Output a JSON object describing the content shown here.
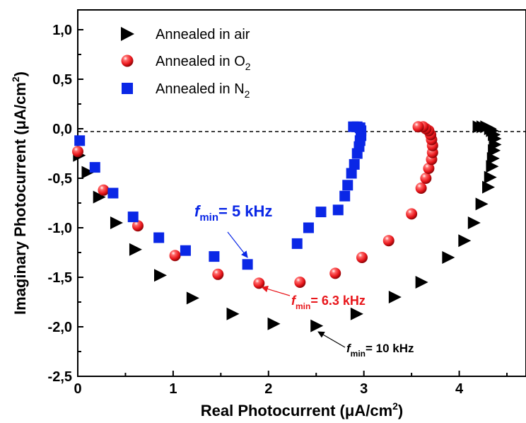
{
  "chart_data": {
    "type": "scatter",
    "xlabel": "Real Photocurrent (μA/cm",
    "xlabel_sup": "2",
    "xlabel_end": ")",
    "ylabel": "Imaginary Photocurrent (μA/cm",
    "ylabel_sup": "2",
    "ylabel_end": ")",
    "xlim": [
      0,
      4.7
    ],
    "ylim": [
      -2.5,
      1.2
    ],
    "xticks": [
      0,
      1,
      2,
      3,
      4
    ],
    "xtick_labels": [
      "0",
      "1",
      "2",
      "3",
      "4"
    ],
    "yticks": [
      1.0,
      0.5,
      0.0,
      -0.5,
      -1.0,
      -1.5,
      -2.0,
      -2.5
    ],
    "ytick_labels": [
      "1,0",
      "0,5",
      "0,0",
      "-0,5",
      "-1,0",
      "-1,5",
      "-2,0",
      "-2,5"
    ],
    "reference_line": {
      "y": 0,
      "style": "dashed"
    },
    "grid": false,
    "legend_position": "top-left",
    "series": [
      {
        "name_main": "Annealed in air",
        "name_sub": "",
        "marker": "triangle-right",
        "color": "#000000",
        "points": [
          [
            0.01,
            -0.27
          ],
          [
            0.1,
            -0.44
          ],
          [
            0.22,
            -0.69
          ],
          [
            0.4,
            -0.95
          ],
          [
            0.6,
            -1.22
          ],
          [
            0.86,
            -1.48
          ],
          [
            1.2,
            -1.71
          ],
          [
            1.62,
            -1.87
          ],
          [
            2.05,
            -1.97
          ],
          [
            2.5,
            -1.99
          ],
          [
            2.92,
            -1.87
          ],
          [
            3.32,
            -1.7
          ],
          [
            3.6,
            -1.55
          ],
          [
            3.88,
            -1.3
          ],
          [
            4.05,
            -1.13
          ],
          [
            4.15,
            -0.95
          ],
          [
            4.23,
            -0.76
          ],
          [
            4.3,
            -0.59
          ],
          [
            4.32,
            -0.49
          ],
          [
            4.34,
            -0.38
          ],
          [
            4.35,
            -0.3
          ],
          [
            4.36,
            -0.22
          ],
          [
            4.37,
            -0.16
          ],
          [
            4.37,
            -0.1
          ],
          [
            4.36,
            -0.06
          ],
          [
            4.34,
            -0.02
          ],
          [
            4.32,
            0.0
          ],
          [
            4.28,
            0.02
          ],
          [
            4.24,
            0.02
          ],
          [
            4.2,
            0.02
          ]
        ]
      },
      {
        "name_main": "Annealed in O",
        "name_sub": "2",
        "marker": "sphere",
        "color": "#e8161b",
        "points": [
          [
            0.0,
            -0.23
          ],
          [
            0.27,
            -0.62
          ],
          [
            0.63,
            -0.98
          ],
          [
            1.02,
            -1.28
          ],
          [
            1.47,
            -1.47
          ],
          [
            1.9,
            -1.56
          ],
          [
            2.33,
            -1.55
          ],
          [
            2.7,
            -1.46
          ],
          [
            2.98,
            -1.3
          ],
          [
            3.26,
            -1.13
          ],
          [
            3.5,
            -0.86
          ],
          [
            3.6,
            -0.6
          ],
          [
            3.65,
            -0.5
          ],
          [
            3.68,
            -0.4
          ],
          [
            3.71,
            -0.31
          ],
          [
            3.72,
            -0.24
          ],
          [
            3.72,
            -0.17
          ],
          [
            3.71,
            -0.11
          ],
          [
            3.7,
            -0.06
          ],
          [
            3.68,
            -0.02
          ],
          [
            3.65,
            0.0
          ],
          [
            3.62,
            0.02
          ],
          [
            3.57,
            0.02
          ]
        ]
      },
      {
        "name_main": "Annealed in N",
        "name_sub": "2",
        "marker": "square",
        "color": "#0a27e6",
        "points": [
          [
            0.02,
            -0.12
          ],
          [
            0.18,
            -0.39
          ],
          [
            0.37,
            -0.65
          ],
          [
            0.58,
            -0.89
          ],
          [
            0.85,
            -1.1
          ],
          [
            1.13,
            -1.23
          ],
          [
            1.43,
            -1.29
          ],
          [
            1.78,
            -1.37
          ],
          [
            2.3,
            -1.16
          ],
          [
            2.42,
            -1.0
          ],
          [
            2.55,
            -0.84
          ],
          [
            2.73,
            -0.82
          ],
          [
            2.8,
            -0.68
          ],
          [
            2.83,
            -0.57
          ],
          [
            2.87,
            -0.45
          ],
          [
            2.9,
            -0.36
          ],
          [
            2.93,
            -0.25
          ],
          [
            2.95,
            -0.18
          ],
          [
            2.96,
            -0.12
          ],
          [
            2.97,
            -0.07
          ],
          [
            2.97,
            -0.02
          ],
          [
            2.96,
            0.01
          ],
          [
            2.93,
            0.02
          ],
          [
            2.89,
            0.02
          ]
        ]
      }
    ],
    "annotations": [
      {
        "f": "f",
        "sub": "min",
        "value": "= 5 kHz",
        "color": "#0a27e6",
        "arrow_to": [
          1.78,
          -1.3
        ]
      },
      {
        "f": "f",
        "sub": "min",
        "value": "= 6.3 kHz",
        "color": "#e8161b",
        "arrow_to": [
          1.93,
          -1.6
        ]
      },
      {
        "f": "f",
        "sub": "min",
        "value": "= 10 kHz",
        "color": "#000000",
        "arrow_to": [
          2.52,
          -2.05
        ]
      }
    ]
  }
}
